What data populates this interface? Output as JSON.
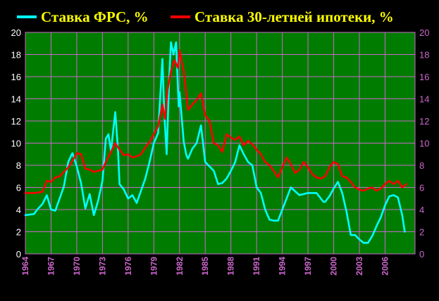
{
  "colors": {
    "background": "#000000",
    "plot_area": "#007d00",
    "grid": "#cc66cc",
    "fed_series": "#00ffff",
    "mortgage_series": "#ff0000",
    "legend_text": "#ffff00",
    "left_axis_text": "#ffffff",
    "right_axis_text": "#cc66cc",
    "x_axis_text": "#cc66cc"
  },
  "chart_data": {
    "type": "line",
    "title": "",
    "xlabel": "",
    "ylabel": "",
    "ylim": [
      0,
      20
    ],
    "xlim": [
      1964,
      2009.5
    ],
    "y_ticks": [
      "0",
      "2",
      "4",
      "6",
      "8",
      "10",
      "12",
      "14",
      "16",
      "18",
      "20"
    ],
    "x_ticks": [
      "1964",
      "1967",
      "1970",
      "1973",
      "1976",
      "1979",
      "1982",
      "1985",
      "1988",
      "1991",
      "1994",
      "1997",
      "2000",
      "2003",
      "2006"
    ],
    "grid": true,
    "legend_placement": "top",
    "series": [
      {
        "name": "Ставка ФРС, %",
        "x": [
          1964,
          1965,
          1965.5,
          1966,
          1966.5,
          1967,
          1967.5,
          1968,
          1968.5,
          1969,
          1969.5,
          1970,
          1970.5,
          1971,
          1971.5,
          1972,
          1972.5,
          1973,
          1973.4,
          1973.7,
          1974,
          1974.5,
          1974.8,
          1975,
          1975.5,
          1976,
          1976.5,
          1977,
          1977.5,
          1978,
          1978.5,
          1979,
          1979.5,
          1980,
          1980.2,
          1980.5,
          1980.8,
          1981,
          1981.3,
          1981.6,
          1981.9,
          1982,
          1982.5,
          1982.8,
          1983,
          1983.5,
          1984,
          1984.5,
          1985,
          1985.5,
          1986,
          1986.5,
          1987,
          1987.5,
          1988,
          1988.5,
          1989,
          1989.5,
          1990,
          1990.5,
          1991,
          1991.5,
          1992,
          1992.5,
          1993,
          1993.5,
          1994,
          1994.5,
          1995,
          1996,
          1997,
          1998,
          1998.8,
          1999,
          1999.5,
          2000,
          2000.5,
          2001,
          2001.5,
          2002,
          2002.5,
          2003,
          2003.5,
          2004,
          2004.5,
          2005,
          2005.5,
          2006,
          2006.5,
          2007,
          2007.5,
          2008,
          2008.3
        ],
        "values": [
          3.5,
          3.6,
          4.1,
          4.5,
          5.3,
          4.0,
          3.9,
          5.0,
          6.1,
          8.3,
          9.1,
          7.9,
          6.4,
          4.1,
          5.4,
          3.5,
          4.8,
          6.6,
          10.4,
          10.8,
          9.3,
          12.8,
          9.5,
          6.3,
          5.8,
          5.0,
          5.3,
          4.6,
          5.7,
          6.8,
          8.3,
          10.0,
          10.9,
          17.6,
          13.0,
          9.0,
          16.0,
          19.1,
          18.0,
          19.1,
          13.3,
          14.6,
          10.1,
          8.9,
          8.6,
          9.5,
          10.0,
          11.6,
          8.3,
          7.9,
          7.5,
          6.3,
          6.4,
          6.8,
          7.5,
          8.3,
          9.8,
          9.0,
          8.3,
          8.0,
          6.0,
          5.5,
          4.0,
          3.1,
          3.0,
          3.0,
          4.0,
          5.0,
          6.0,
          5.3,
          5.5,
          5.5,
          4.7,
          4.7,
          5.2,
          5.9,
          6.5,
          5.5,
          3.8,
          1.7,
          1.7,
          1.3,
          1.0,
          1.0,
          1.6,
          2.5,
          3.3,
          4.4,
          5.2,
          5.3,
          5.1,
          3.5,
          2.0
        ]
      },
      {
        "name": "Ставка 30-летней ипотеки, %",
        "x": [
          1964,
          1965,
          1966,
          1966.5,
          1967,
          1967.5,
          1968,
          1968.5,
          1969,
          1969.5,
          1970,
          1970.5,
          1971,
          1971.5,
          1972,
          1972.5,
          1973,
          1973.5,
          1974,
          1974.5,
          1975,
          1975.5,
          1976,
          1976.5,
          1977,
          1977.5,
          1978,
          1978.5,
          1979,
          1979.5,
          1980,
          1980.3,
          1980.6,
          1981,
          1981.4,
          1981.8,
          1982,
          1982.5,
          1983,
          1983.5,
          1984,
          1984.5,
          1985,
          1985.5,
          1986,
          1986.5,
          1987,
          1987.5,
          1988,
          1988.5,
          1989,
          1989.5,
          1990,
          1990.5,
          1991,
          1991.5,
          1992,
          1992.5,
          1993,
          1993.5,
          1994,
          1994.5,
          1995,
          1995.5,
          1996,
          1996.5,
          1997,
          1997.5,
          1998,
          1998.5,
          1999,
          1999.5,
          2000,
          2000.5,
          2001,
          2001.5,
          2002,
          2002.5,
          2003,
          2003.5,
          2004,
          2004.5,
          2005,
          2005.5,
          2006,
          2006.5,
          2007,
          2007.5,
          2008,
          2008.5
        ],
        "values": [
          5.5,
          5.5,
          5.6,
          6.6,
          6.5,
          6.9,
          7.0,
          7.4,
          7.8,
          8.4,
          9.1,
          9.0,
          7.7,
          7.6,
          7.4,
          7.5,
          7.6,
          8.5,
          9.2,
          10.0,
          9.4,
          8.9,
          9.0,
          8.7,
          8.8,
          9.0,
          9.6,
          10.1,
          10.8,
          11.5,
          13.5,
          12.2,
          14.8,
          16.5,
          17.5,
          16.8,
          18.4,
          16.5,
          13.0,
          13.5,
          13.9,
          14.5,
          12.5,
          12.0,
          10.0,
          9.8,
          9.2,
          10.8,
          10.5,
          10.3,
          10.6,
          9.8,
          10.2,
          9.9,
          9.4,
          9.0,
          8.3,
          8.0,
          7.5,
          6.9,
          7.8,
          8.7,
          8.1,
          7.3,
          7.6,
          8.3,
          7.8,
          7.2,
          6.9,
          6.8,
          7.0,
          7.8,
          8.3,
          8.1,
          7.0,
          6.9,
          6.5,
          6.0,
          5.8,
          5.7,
          5.9,
          6.0,
          5.7,
          5.9,
          6.3,
          6.6,
          6.3,
          6.6,
          6.0,
          6.3
        ]
      }
    ]
  }
}
